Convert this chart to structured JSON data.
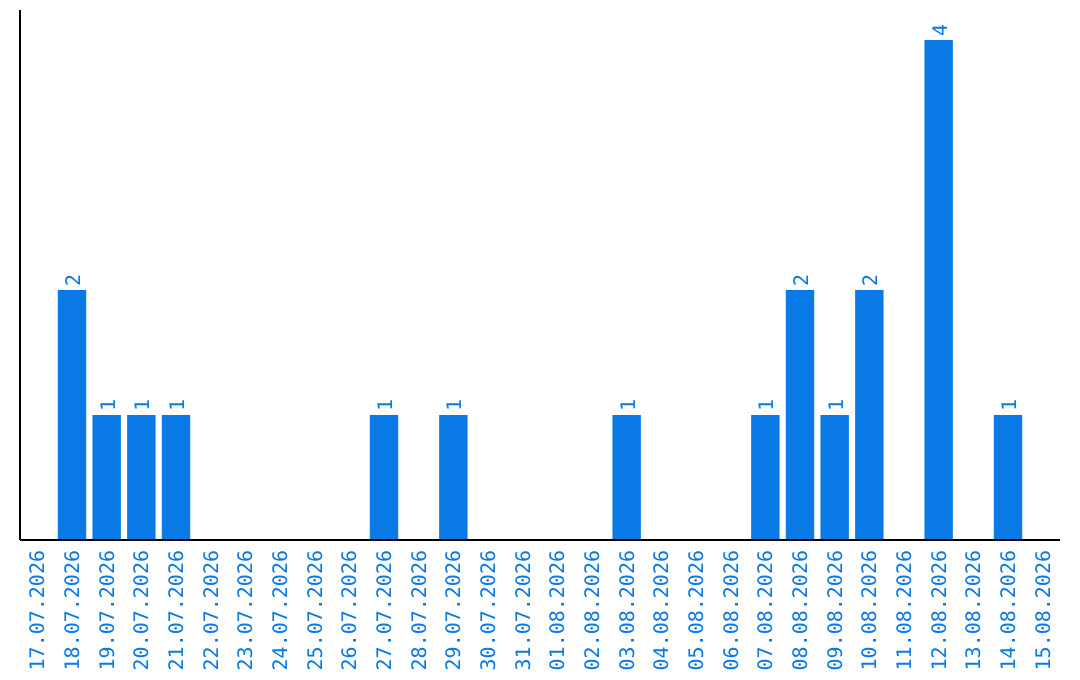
{
  "chart_data": {
    "type": "bar",
    "categories": [
      "17.07.2026",
      "18.07.2026",
      "19.07.2026",
      "20.07.2026",
      "21.07.2026",
      "22.07.2026",
      "23.07.2026",
      "24.07.2026",
      "25.07.2026",
      "26.07.2026",
      "27.07.2026",
      "28.07.2026",
      "29.07.2026",
      "30.07.2026",
      "31.07.2026",
      "01.08.2026",
      "02.08.2026",
      "03.08.2026",
      "04.08.2026",
      "05.08.2026",
      "06.08.2026",
      "07.08.2026",
      "08.08.2026",
      "09.08.2026",
      "10.08.2026",
      "11.08.2026",
      "12.08.2026",
      "13.08.2026",
      "14.08.2026",
      "15.08.2026"
    ],
    "values": [
      0,
      2,
      1,
      1,
      1,
      0,
      0,
      0,
      0,
      0,
      1,
      0,
      1,
      0,
      0,
      0,
      0,
      1,
      0,
      0,
      0,
      1,
      2,
      1,
      2,
      0,
      4,
      0,
      1,
      0
    ],
    "value_labels": [
      null,
      "2",
      "1",
      "1",
      "1",
      null,
      null,
      null,
      null,
      null,
      "1",
      null,
      "1",
      null,
      null,
      null,
      null,
      "1",
      null,
      null,
      null,
      "1",
      "2",
      "1",
      "2",
      null,
      "4",
      null,
      "1",
      null
    ],
    "color": "#0a7ae6"
  }
}
